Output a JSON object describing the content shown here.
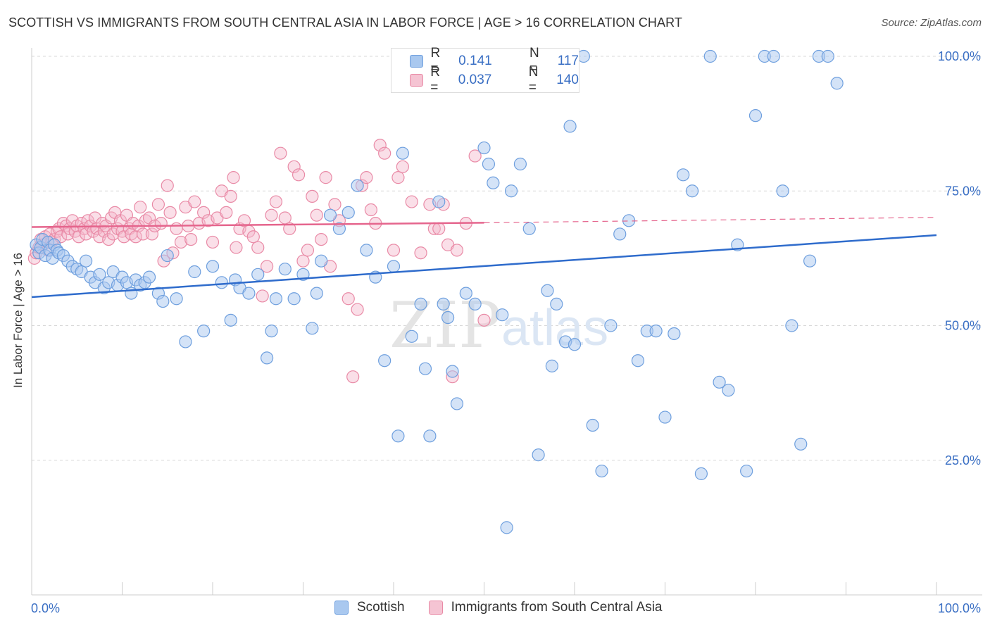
{
  "title": "SCOTTISH VS IMMIGRANTS FROM SOUTH CENTRAL ASIA IN LABOR FORCE | AGE > 16 CORRELATION CHART",
  "source": "Source: ZipAtlas.com",
  "watermark": {
    "zip": "ZIP",
    "atlas": "atlas"
  },
  "legend": {
    "series1": {
      "r_label": "R =",
      "r_value": "0.141",
      "n_label": "N =",
      "n_value": "117"
    },
    "series2": {
      "r_label": "R =",
      "r_value": "0.037",
      "n_label": "N =",
      "n_value": "140"
    }
  },
  "bottom_legend": {
    "series1": "Scottish",
    "series2": "Immigrants from South Central Asia"
  },
  "colors": {
    "blue_fill": "#a9c8ef",
    "blue_stroke": "#6e9fde",
    "blue_line": "#2f6ccc",
    "pink_fill": "#f5b9cb",
    "pink_stroke": "#e98aa6",
    "pink_line": "#e5658d",
    "tick_label": "#3a6fc4",
    "grid": "#d8d8d8"
  },
  "chart_data": {
    "type": "scatter",
    "title": "SCOTTISH VS IMMIGRANTS FROM SOUTH CENTRAL ASIA IN LABOR FORCE | AGE > 16 CORRELATION CHART",
    "xlabel": "",
    "ylabel": "In Labor Force | Age > 16",
    "xlim": [
      0,
      100
    ],
    "ylim": [
      0,
      105
    ],
    "x_tick_labels": [
      "0.0%",
      "100.0%"
    ],
    "y_ticks": [
      25,
      50,
      75,
      100
    ],
    "y_tick_labels": [
      "25.0%",
      "50.0%",
      "75.0%",
      "100.0%"
    ],
    "grid": "horizontal dashed",
    "legend_position": "top-center",
    "series": [
      {
        "name": "Scottish",
        "color": "#6e9fde",
        "trend": {
          "x": [
            0,
            100
          ],
          "y": [
            55.3,
            66.8
          ]
        },
        "points": [
          [
            0.5,
            65
          ],
          [
            0.8,
            63.5
          ],
          [
            1,
            64.5
          ],
          [
            1.2,
            66
          ],
          [
            1.5,
            63
          ],
          [
            1.8,
            65.5
          ],
          [
            2,
            64
          ],
          [
            2.3,
            62.5
          ],
          [
            2.5,
            65
          ],
          [
            2.8,
            64
          ],
          [
            3,
            63.5
          ],
          [
            3.5,
            63
          ],
          [
            4,
            62
          ],
          [
            4.5,
            61
          ],
          [
            5,
            60.5
          ],
          [
            5.5,
            60
          ],
          [
            6,
            62
          ],
          [
            6.5,
            59
          ],
          [
            7,
            58
          ],
          [
            7.5,
            59.5
          ],
          [
            8,
            57
          ],
          [
            8.5,
            58
          ],
          [
            9,
            60
          ],
          [
            9.5,
            57.5
          ],
          [
            10,
            59
          ],
          [
            10.5,
            58
          ],
          [
            11,
            56
          ],
          [
            11.5,
            58.5
          ],
          [
            12,
            57.5
          ],
          [
            12.5,
            58
          ],
          [
            13,
            59
          ],
          [
            14,
            56
          ],
          [
            14.5,
            54.5
          ],
          [
            15,
            63
          ],
          [
            16,
            55
          ],
          [
            17,
            47
          ],
          [
            18,
            60
          ],
          [
            19,
            49
          ],
          [
            20,
            61
          ],
          [
            21,
            58
          ],
          [
            22,
            51
          ],
          [
            22.5,
            58.5
          ],
          [
            23,
            57
          ],
          [
            24,
            56
          ],
          [
            25,
            59.5
          ],
          [
            26,
            44
          ],
          [
            26.5,
            49
          ],
          [
            27,
            55
          ],
          [
            28,
            60.5
          ],
          [
            29,
            55
          ],
          [
            30,
            59.5
          ],
          [
            31,
            49.5
          ],
          [
            31.5,
            56
          ],
          [
            32,
            62
          ],
          [
            33,
            70.5
          ],
          [
            34,
            68
          ],
          [
            35,
            71
          ],
          [
            36,
            76
          ],
          [
            37,
            64
          ],
          [
            38,
            59
          ],
          [
            39,
            43.5
          ],
          [
            40,
            61
          ],
          [
            40.5,
            29.5
          ],
          [
            41,
            82
          ],
          [
            42,
            48
          ],
          [
            43,
            54
          ],
          [
            43.5,
            42
          ],
          [
            44,
            29.5
          ],
          [
            45,
            73
          ],
          [
            45.5,
            54
          ],
          [
            46,
            51.5
          ],
          [
            46.5,
            41.5
          ],
          [
            47,
            35.5
          ],
          [
            48,
            56
          ],
          [
            49,
            54
          ],
          [
            50,
            83
          ],
          [
            50.5,
            80
          ],
          [
            51,
            76.5
          ],
          [
            52,
            52
          ],
          [
            52.5,
            12.5
          ],
          [
            53,
            75
          ],
          [
            54,
            80
          ],
          [
            55,
            68
          ],
          [
            56,
            26
          ],
          [
            57,
            56.5
          ],
          [
            57.5,
            42.5
          ],
          [
            58,
            54
          ],
          [
            59,
            47
          ],
          [
            59.5,
            87
          ],
          [
            60,
            46.5
          ],
          [
            61,
            100
          ],
          [
            62,
            31.5
          ],
          [
            63,
            23
          ],
          [
            64,
            50
          ],
          [
            65,
            67
          ],
          [
            66,
            69.5
          ],
          [
            67,
            43.5
          ],
          [
            68,
            49
          ],
          [
            69,
            49
          ],
          [
            70,
            33
          ],
          [
            71,
            48.5
          ],
          [
            72,
            78
          ],
          [
            73,
            75
          ],
          [
            74,
            22.5
          ],
          [
            75,
            100
          ],
          [
            76,
            39.5
          ],
          [
            77,
            38
          ],
          [
            78,
            65
          ],
          [
            79,
            23
          ],
          [
            80,
            89
          ],
          [
            81,
            100
          ],
          [
            82,
            100
          ],
          [
            83,
            75
          ],
          [
            84,
            50
          ],
          [
            85,
            28
          ],
          [
            86,
            62
          ],
          [
            87,
            100
          ],
          [
            88,
            100
          ],
          [
            89,
            95
          ]
        ]
      },
      {
        "name": "Immigrants from South Central Asia",
        "color": "#e98aa6",
        "trend": {
          "x": [
            0,
            50
          ],
          "y": [
            68.3,
            69.1
          ]
        },
        "trend_dashed": {
          "x": [
            50,
            100
          ],
          "y": [
            69.1,
            70.1
          ]
        },
        "points": [
          [
            0.3,
            62.5
          ],
          [
            0.5,
            63.5
          ],
          [
            0.8,
            64.5
          ],
          [
            1,
            66
          ],
          [
            1.2,
            65
          ],
          [
            1.5,
            66.5
          ],
          [
            1.8,
            64
          ],
          [
            2,
            67
          ],
          [
            2.2,
            65.5
          ],
          [
            2.5,
            66
          ],
          [
            2.8,
            67.5
          ],
          [
            3,
            68
          ],
          [
            3.2,
            66.5
          ],
          [
            3.5,
            69
          ],
          [
            3.8,
            68.5
          ],
          [
            4,
            67
          ],
          [
            4.2,
            68
          ],
          [
            4.5,
            69.5
          ],
          [
            4.8,
            67.5
          ],
          [
            5,
            68.5
          ],
          [
            5.2,
            66.5
          ],
          [
            5.5,
            69
          ],
          [
            5.8,
            68
          ],
          [
            6,
            67
          ],
          [
            6.2,
            69.5
          ],
          [
            6.5,
            68.5
          ],
          [
            6.8,
            67.5
          ],
          [
            7,
            70
          ],
          [
            7.2,
            68
          ],
          [
            7.5,
            66.5
          ],
          [
            7.8,
            69
          ],
          [
            8,
            67.5
          ],
          [
            8.2,
            68.5
          ],
          [
            8.5,
            66
          ],
          [
            8.8,
            70
          ],
          [
            9,
            67
          ],
          [
            9.2,
            71
          ],
          [
            9.5,
            68
          ],
          [
            9.8,
            69.5
          ],
          [
            10,
            67.5
          ],
          [
            10.2,
            66.5
          ],
          [
            10.5,
            70.5
          ],
          [
            10.8,
            68
          ],
          [
            11,
            67
          ],
          [
            11.2,
            69
          ],
          [
            11.5,
            66.5
          ],
          [
            11.8,
            68.5
          ],
          [
            12,
            72
          ],
          [
            12.3,
            67
          ],
          [
            12.6,
            69.5
          ],
          [
            13,
            70
          ],
          [
            13.3,
            67
          ],
          [
            13.6,
            68.5
          ],
          [
            14,
            72.5
          ],
          [
            14.3,
            69
          ],
          [
            14.6,
            62
          ],
          [
            15,
            76
          ],
          [
            15.3,
            71
          ],
          [
            15.6,
            63.5
          ],
          [
            16,
            68
          ],
          [
            16.5,
            65.5
          ],
          [
            17,
            72
          ],
          [
            17.3,
            68.5
          ],
          [
            17.6,
            66
          ],
          [
            18,
            73
          ],
          [
            18.5,
            69
          ],
          [
            19,
            71
          ],
          [
            19.5,
            69.5
          ],
          [
            20,
            65.5
          ],
          [
            20.5,
            70
          ],
          [
            21,
            75
          ],
          [
            21.5,
            71
          ],
          [
            22,
            74
          ],
          [
            22.3,
            77.5
          ],
          [
            22.6,
            64.5
          ],
          [
            23,
            68
          ],
          [
            23.5,
            69.5
          ],
          [
            24,
            67.5
          ],
          [
            24.5,
            66.5
          ],
          [
            25,
            64.5
          ],
          [
            25.5,
            55.5
          ],
          [
            26,
            61
          ],
          [
            26.5,
            70.5
          ],
          [
            27,
            73
          ],
          [
            27.5,
            82
          ],
          [
            28,
            70
          ],
          [
            28.5,
            68
          ],
          [
            29,
            79.5
          ],
          [
            29.5,
            78
          ],
          [
            30,
            62
          ],
          [
            30.5,
            64
          ],
          [
            31,
            74
          ],
          [
            31.5,
            70.5
          ],
          [
            32,
            66
          ],
          [
            32.5,
            77.5
          ],
          [
            33,
            61
          ],
          [
            33.5,
            72.5
          ],
          [
            34,
            69.5
          ],
          [
            35,
            55
          ],
          [
            35.5,
            40.5
          ],
          [
            36,
            53
          ],
          [
            36.5,
            76
          ],
          [
            37,
            77.5
          ],
          [
            37.5,
            71.5
          ],
          [
            38,
            69
          ],
          [
            38.5,
            83.5
          ],
          [
            39,
            82
          ],
          [
            40,
            64
          ],
          [
            40.5,
            77.5
          ],
          [
            41,
            79.5
          ],
          [
            42,
            73
          ],
          [
            43,
            63.5
          ],
          [
            44,
            72.5
          ],
          [
            44.5,
            68
          ],
          [
            45,
            68
          ],
          [
            45.5,
            72.5
          ],
          [
            46,
            65
          ],
          [
            46.5,
            40.5
          ],
          [
            47,
            64
          ],
          [
            48,
            69
          ],
          [
            49,
            81.5
          ],
          [
            50,
            51
          ]
        ]
      }
    ]
  }
}
